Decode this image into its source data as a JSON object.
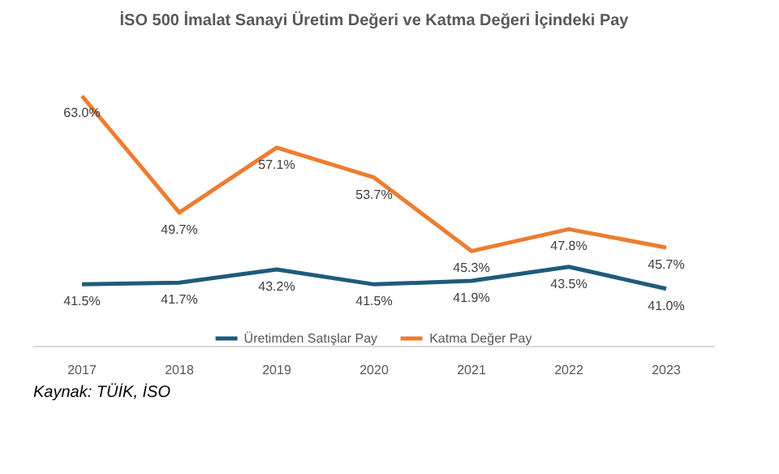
{
  "chart_data": {
    "type": "line",
    "title": "İSO 500 İmalat Sanayi Üretim Değeri ve Katma Değeri İçindeki Pay",
    "categories": [
      "2017",
      "2018",
      "2019",
      "2020",
      "2021",
      "2022",
      "2023"
    ],
    "series": [
      {
        "name": "Üretimden Satışlar Pay",
        "color": "#1f5b7a",
        "values": [
          41.5,
          41.7,
          43.2,
          41.5,
          41.9,
          43.5,
          41.0
        ],
        "value_labels": [
          "41.5%",
          "41.7%",
          "43.2%",
          "41.5%",
          "41.9%",
          "43.5%",
          "41.0%"
        ]
      },
      {
        "name": "Katma Değer Pay",
        "color": "#ed7d31",
        "values": [
          63.0,
          49.7,
          57.1,
          53.7,
          45.3,
          47.8,
          45.7
        ],
        "value_labels": [
          "63.0%",
          "49.7%",
          "57.1%",
          "53.7%",
          "45.3%",
          "47.8%",
          "45.7%"
        ]
      }
    ],
    "tick_labels": "x",
    "grid": false,
    "legend": "bottom",
    "marker": "none",
    "line_style": "solid",
    "annotations": [
      "Kaynak: TÜİK, İSO"
    ]
  }
}
